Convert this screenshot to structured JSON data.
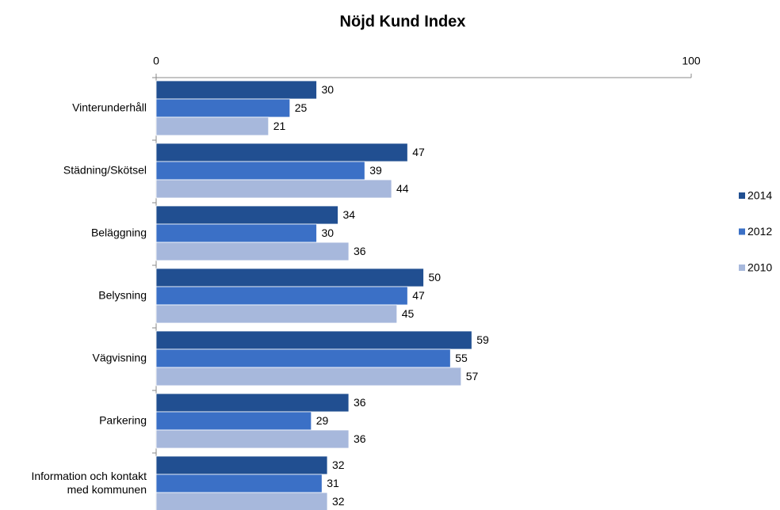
{
  "chart_data": {
    "type": "bar",
    "orientation": "horizontal",
    "title": "Nöjd Kund Index",
    "categories": [
      "Vinterunderhåll",
      "Städning/Skötsel",
      "Beläggning",
      "Belysning",
      "Vägvisning",
      "Parkering",
      "Information och kontakt\nmed kommunen"
    ],
    "series": [
      {
        "name": "2014",
        "color": "#214f91",
        "values": [
          30,
          47,
          34,
          50,
          59,
          36,
          32
        ]
      },
      {
        "name": "2012",
        "color": "#3b70c6",
        "values": [
          25,
          39,
          30,
          47,
          55,
          29,
          31
        ]
      },
      {
        "name": "2010",
        "color": "#a7b8dc",
        "values": [
          21,
          44,
          36,
          45,
          57,
          36,
          32
        ]
      }
    ],
    "xlim": [
      0,
      100
    ],
    "xticks": [
      0,
      100
    ],
    "legend": "right"
  }
}
